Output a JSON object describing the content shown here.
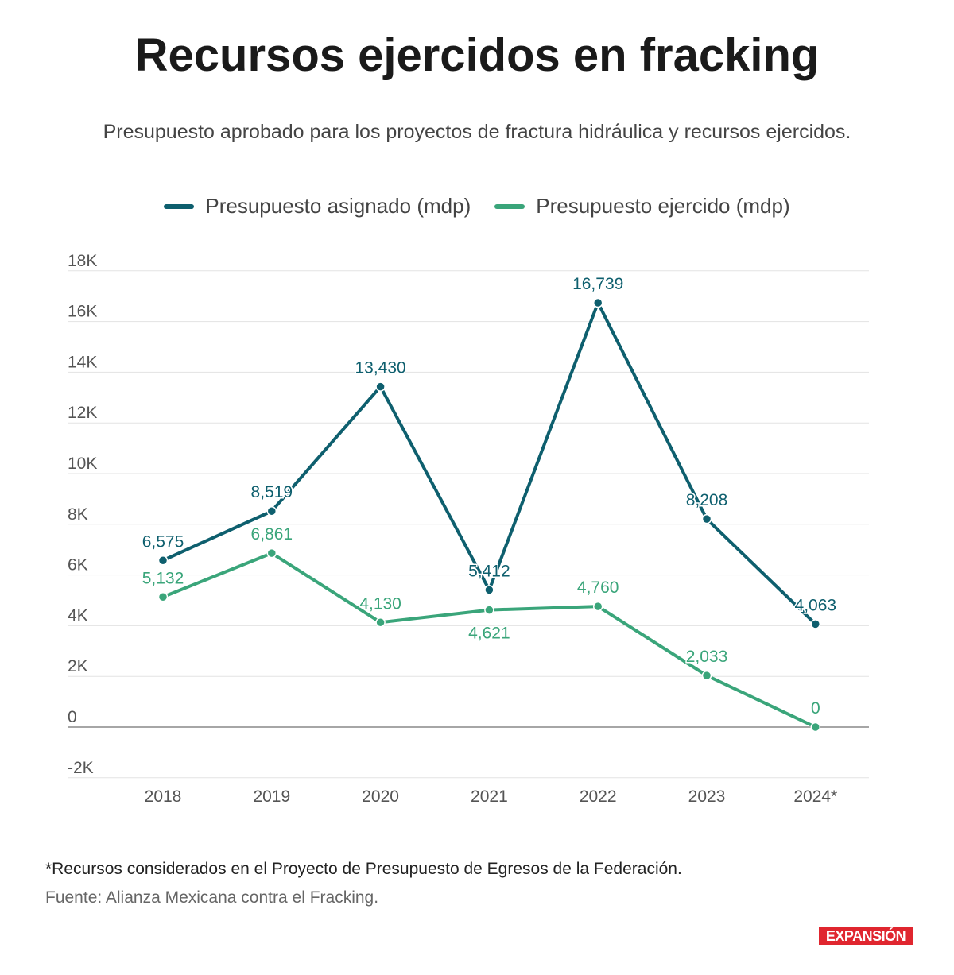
{
  "chart_data": {
    "type": "line",
    "title": "Recursos ejercidos en fracking",
    "subtitle": "Presupuesto aprobado para los proyectos de fractura hidráulica y recursos ejercidos.",
    "categories": [
      "2018",
      "2019",
      "2020",
      "2021",
      "2022",
      "2023",
      "2024*"
    ],
    "series": [
      {
        "name": "Presupuesto asignado (mdp)",
        "color": "#0e5f6e",
        "values": [
          6575,
          8519,
          13430,
          5412,
          16739,
          8208,
          4063
        ],
        "labels": [
          "6,575",
          "8,519",
          "13,430",
          "5,412",
          "16,739",
          "8,208",
          "4,063"
        ]
      },
      {
        "name": "Presupuesto ejercido (mdp)",
        "color": "#3aa57a",
        "values": [
          5132,
          6861,
          4130,
          4621,
          4760,
          2033,
          0
        ],
        "labels": [
          "5,132",
          "6,861",
          "4,130",
          "4,621",
          "4,760",
          "2,033",
          "0"
        ]
      }
    ],
    "yticks": [
      -2000,
      0,
      2000,
      4000,
      6000,
      8000,
      10000,
      12000,
      14000,
      16000,
      18000
    ],
    "ytick_labels": [
      "-2K",
      "0",
      "2K",
      "4K",
      "6K",
      "8K",
      "10K",
      "12K",
      "14K",
      "16K",
      "18K"
    ],
    "ylim": [
      -2000,
      18000
    ],
    "grid": true,
    "legend": "top",
    "xlabel": "",
    "ylabel": ""
  },
  "footer": {
    "note": "*Recursos considerados en el Proyecto de Presupuesto de Egresos de la Federación.",
    "source": "Fuente: Alianza Mexicana contra el Fracking.",
    "logo": "EXPANSIÓN"
  }
}
